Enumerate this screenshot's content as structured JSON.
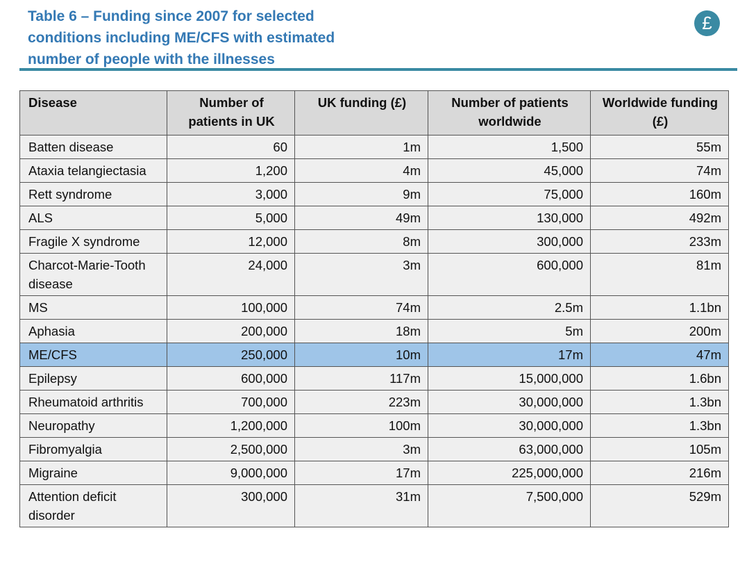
{
  "header": {
    "title": "Table 6 – Funding since 2007 for selected conditions including ME/CFS with estimated number of people with the illnesses",
    "icon": "£"
  },
  "table": {
    "columns": [
      "Disease",
      "Number of patients in UK",
      "UK funding (£)",
      "Number of patients worldwide",
      "Worldwide funding (£)"
    ],
    "rows": [
      [
        "Batten disease",
        "60",
        "1m",
        "1,500",
        "55m"
      ],
      [
        "Ataxia telangiectasia",
        "1,200",
        "4m",
        "45,000",
        "74m"
      ],
      [
        "Rett syndrome",
        "3,000",
        "9m",
        "75,000",
        "160m"
      ],
      [
        "ALS",
        "5,000",
        "49m",
        "130,000",
        "492m"
      ],
      [
        "Fragile X syndrome",
        "12,000",
        "8m",
        "300,000",
        "233m"
      ],
      [
        "Charcot-Marie-Tooth disease",
        "24,000",
        "3m",
        "600,000",
        "81m"
      ],
      [
        "MS",
        "100,000",
        "74m",
        "2.5m",
        "1.1bn"
      ],
      [
        "Aphasia",
        "200,000",
        "18m",
        "5m",
        "200m"
      ],
      [
        "ME/CFS",
        "250,000",
        "10m",
        "17m",
        "47m"
      ],
      [
        "Epilepsy",
        "600,000",
        "117m",
        "15,000,000",
        "1.6bn"
      ],
      [
        "Rheumatoid arthritis",
        "700,000",
        "223m",
        "30,000,000",
        "1.3bn"
      ],
      [
        "Neuropathy",
        "1,200,000",
        "100m",
        "30,000,000",
        "1.3bn"
      ],
      [
        "Fibromyalgia",
        "2,500,000",
        "3m",
        "63,000,000",
        "105m"
      ],
      [
        "Migraine",
        "9,000,000",
        "17m",
        "225,000,000",
        "216m"
      ],
      [
        "Attention deficit disorder",
        "300,000",
        "31m",
        "7,500,000",
        "529m"
      ]
    ]
  }
}
